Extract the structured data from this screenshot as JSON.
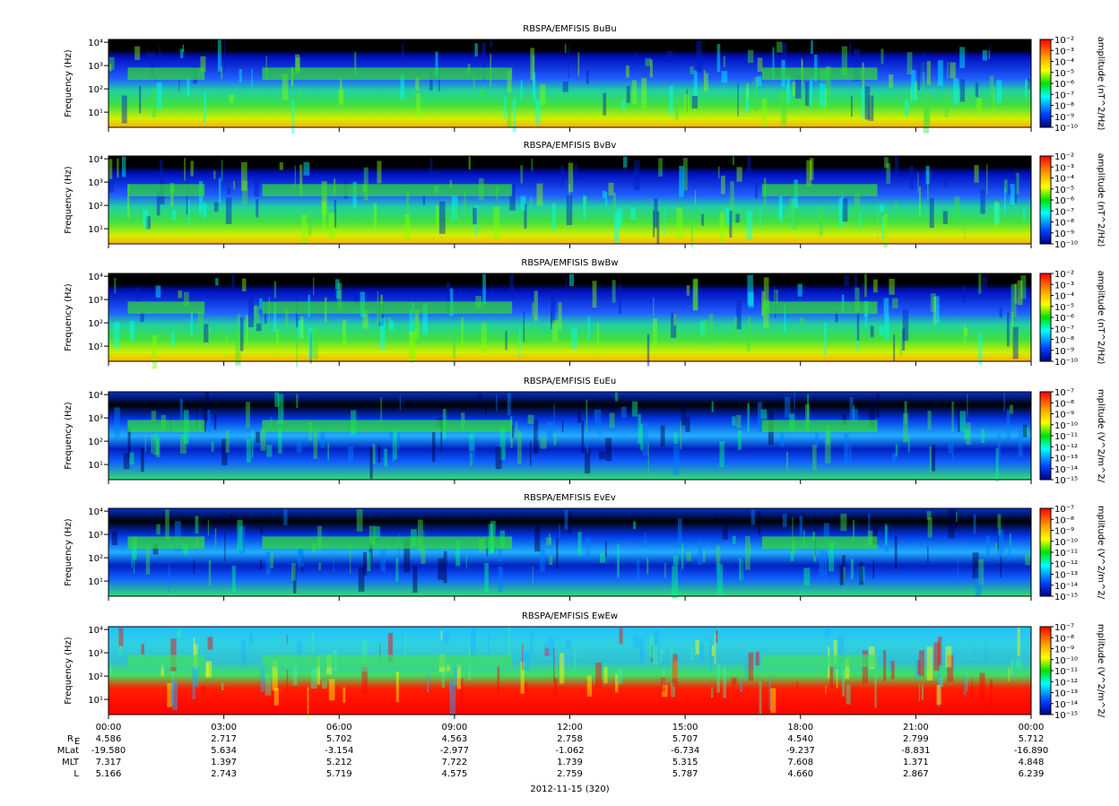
{
  "chart_data": [
    {
      "type": "spectrogram",
      "title": "RBSPA/EMFISIS  BuBu",
      "ylabel": "Frequency (Hz)",
      "log_y": true,
      "ylim": [
        2.24,
        13180
      ],
      "yticks": [
        {
          "value": 10,
          "label": "10¹"
        },
        {
          "value": 100,
          "label": "10²"
        },
        {
          "value": 1000,
          "label": "10³"
        },
        {
          "value": 10000,
          "label": "10⁴"
        }
      ],
      "colorbar_label": "amplitude (nT^2/Hz)",
      "clim": [
        1e-10,
        0.01
      ],
      "cticks": [
        {
          "value": 0.01,
          "label": "10⁻²"
        },
        {
          "value": 0.001,
          "label": "10⁻³"
        },
        {
          "value": 0.0001,
          "label": "10⁻⁴"
        },
        {
          "value": 1e-05,
          "label": "10⁻⁵"
        },
        {
          "value": 1e-06,
          "label": "10⁻⁶"
        },
        {
          "value": 1e-07,
          "label": "10⁻⁷"
        },
        {
          "value": 1e-08,
          "label": "10⁻⁸"
        },
        {
          "value": 1e-09,
          "label": "10⁻⁹"
        },
        {
          "value": 1e-10,
          "label": "10⁻¹⁰"
        }
      ]
    },
    {
      "type": "spectrogram",
      "title": "RBSPA/EMFISIS  BvBv",
      "ylabel": "Frequency (Hz)",
      "log_y": true,
      "ylim": [
        2.24,
        13180
      ],
      "yticks": [
        {
          "value": 10,
          "label": "10¹"
        },
        {
          "value": 100,
          "label": "10²"
        },
        {
          "value": 1000,
          "label": "10³"
        },
        {
          "value": 10000,
          "label": "10⁴"
        }
      ],
      "colorbar_label": "amplitude (nT^2/Hz)",
      "clim": [
        1e-10,
        0.01
      ],
      "cticks": [
        {
          "value": 0.01,
          "label": "10⁻²"
        },
        {
          "value": 0.001,
          "label": "10⁻³"
        },
        {
          "value": 0.0001,
          "label": "10⁻⁴"
        },
        {
          "value": 1e-05,
          "label": "10⁻⁵"
        },
        {
          "value": 1e-06,
          "label": "10⁻⁶"
        },
        {
          "value": 1e-07,
          "label": "10⁻⁷"
        },
        {
          "value": 1e-08,
          "label": "10⁻⁸"
        },
        {
          "value": 1e-09,
          "label": "10⁻⁹"
        },
        {
          "value": 1e-10,
          "label": "10⁻¹⁰"
        }
      ]
    },
    {
      "type": "spectrogram",
      "title": "RBSPA/EMFISIS  BwBw",
      "ylabel": "Frequency (Hz)",
      "log_y": true,
      "ylim": [
        2.24,
        13180
      ],
      "yticks": [
        {
          "value": 10,
          "label": "10¹"
        },
        {
          "value": 100,
          "label": "10²"
        },
        {
          "value": 1000,
          "label": "10³"
        },
        {
          "value": 10000,
          "label": "10⁴"
        }
      ],
      "colorbar_label": "amplitude (nT^2/Hz)",
      "clim": [
        1e-10,
        0.01
      ],
      "cticks": [
        {
          "value": 0.01,
          "label": "10⁻²"
        },
        {
          "value": 0.001,
          "label": "10⁻³"
        },
        {
          "value": 0.0001,
          "label": "10⁻⁴"
        },
        {
          "value": 1e-05,
          "label": "10⁻⁵"
        },
        {
          "value": 1e-06,
          "label": "10⁻⁶"
        },
        {
          "value": 1e-07,
          "label": "10⁻⁷"
        },
        {
          "value": 1e-08,
          "label": "10⁻⁸"
        },
        {
          "value": 1e-09,
          "label": "10⁻⁹"
        },
        {
          "value": 1e-10,
          "label": "10⁻¹⁰"
        }
      ]
    },
    {
      "type": "spectrogram",
      "title": "RBSPA/EMFISIS  EuEu",
      "ylabel": "Frequency (Hz)",
      "log_y": true,
      "ylim": [
        2.24,
        13180
      ],
      "yticks": [
        {
          "value": 10,
          "label": "10¹"
        },
        {
          "value": 100,
          "label": "10²"
        },
        {
          "value": 1000,
          "label": "10³"
        },
        {
          "value": 10000,
          "label": "10⁴"
        }
      ],
      "colorbar_label": "mplitude (V^2/m^2/",
      "clim": [
        1e-15,
        1e-07
      ],
      "cticks": [
        {
          "value": 1e-07,
          "label": "10⁻⁷"
        },
        {
          "value": 1e-08,
          "label": "10⁻⁸"
        },
        {
          "value": 1e-09,
          "label": "10⁻⁹"
        },
        {
          "value": 1e-10,
          "label": "10⁻¹⁰"
        },
        {
          "value": 1e-11,
          "label": "10⁻¹¹"
        },
        {
          "value": 1e-12,
          "label": "10⁻¹²"
        },
        {
          "value": 1e-13,
          "label": "10⁻¹³"
        },
        {
          "value": 1e-14,
          "label": "10⁻¹⁴"
        },
        {
          "value": 1e-15,
          "label": "10⁻¹⁵"
        }
      ]
    },
    {
      "type": "spectrogram",
      "title": "RBSPA/EMFISIS  EvEv",
      "ylabel": "Frequency (Hz)",
      "log_y": true,
      "ylim": [
        2.24,
        13180
      ],
      "yticks": [
        {
          "value": 10,
          "label": "10¹"
        },
        {
          "value": 100,
          "label": "10²"
        },
        {
          "value": 1000,
          "label": "10³"
        },
        {
          "value": 10000,
          "label": "10⁴"
        }
      ],
      "colorbar_label": "mplitude (V^2/m^2/",
      "clim": [
        1e-15,
        1e-07
      ],
      "cticks": [
        {
          "value": 1e-07,
          "label": "10⁻⁷"
        },
        {
          "value": 1e-08,
          "label": "10⁻⁸"
        },
        {
          "value": 1e-09,
          "label": "10⁻⁹"
        },
        {
          "value": 1e-10,
          "label": "10⁻¹⁰"
        },
        {
          "value": 1e-11,
          "label": "10⁻¹¹"
        },
        {
          "value": 1e-12,
          "label": "10⁻¹²"
        },
        {
          "value": 1e-13,
          "label": "10⁻¹³"
        },
        {
          "value": 1e-14,
          "label": "10⁻¹⁴"
        },
        {
          "value": 1e-15,
          "label": "10⁻¹⁵"
        }
      ]
    },
    {
      "type": "spectrogram",
      "title": "RBSPA/EMFISIS  EwEw",
      "ylabel": "Frequency (Hz)",
      "log_y": true,
      "ylim": [
        2.24,
        13180
      ],
      "yticks": [
        {
          "value": 10,
          "label": "10¹"
        },
        {
          "value": 100,
          "label": "10²"
        },
        {
          "value": 1000,
          "label": "10³"
        },
        {
          "value": 10000,
          "label": "10⁴"
        }
      ],
      "colorbar_label": "mplitude (V^2/m^2/",
      "clim": [
        1e-15,
        1e-07
      ],
      "cticks": [
        {
          "value": 1e-07,
          "label": "10⁻⁷"
        },
        {
          "value": 1e-08,
          "label": "10⁻⁸"
        },
        {
          "value": 1e-09,
          "label": "10⁻⁹"
        },
        {
          "value": 1e-10,
          "label": "10⁻¹⁰"
        },
        {
          "value": 1e-11,
          "label": "10⁻¹¹"
        },
        {
          "value": 1e-12,
          "label": "10⁻¹²"
        },
        {
          "value": 1e-13,
          "label": "10⁻¹³"
        },
        {
          "value": 1e-14,
          "label": "10⁻¹⁴"
        },
        {
          "value": 1e-15,
          "label": "10⁻¹⁵"
        }
      ],
      "xlim": [
        0,
        24
      ],
      "xticks": [
        {
          "value": 0,
          "label": "00:00"
        },
        {
          "value": 3,
          "label": "03:00"
        },
        {
          "value": 6,
          "label": "06:00"
        },
        {
          "value": 9,
          "label": "09:00"
        },
        {
          "value": 12,
          "label": "12:00"
        },
        {
          "value": 15,
          "label": "15:00"
        },
        {
          "value": 18,
          "label": "18:00"
        },
        {
          "value": 21,
          "label": "21:00"
        },
        {
          "value": 24,
          "label": "00:00"
        }
      ],
      "xlabel": "2012-11-15 (320)"
    }
  ],
  "ephemeris": [
    {
      "label": "R",
      "sub": "E",
      "values": [
        "4.586",
        "2.717",
        "5.702",
        "4.563",
        "2.758",
        "5.707",
        "4.540",
        "2.799",
        "5.712"
      ]
    },
    {
      "label": "MLat",
      "values": [
        "-19.580",
        "5.634",
        "-3.154",
        "-2.977",
        "-1.062",
        "-6.734",
        "-9.237",
        "-8.831",
        "-16.890"
      ]
    },
    {
      "label": "MLT",
      "values": [
        "7.317",
        "1.397",
        "5.212",
        "7.722",
        "1.739",
        "5.315",
        "7.608",
        "1.371",
        "4.848"
      ]
    },
    {
      "label": "L",
      "values": [
        "5.166",
        "2.743",
        "5.719",
        "4.575",
        "2.759",
        "5.787",
        "4.660",
        "2.867",
        "6.239"
      ]
    }
  ]
}
